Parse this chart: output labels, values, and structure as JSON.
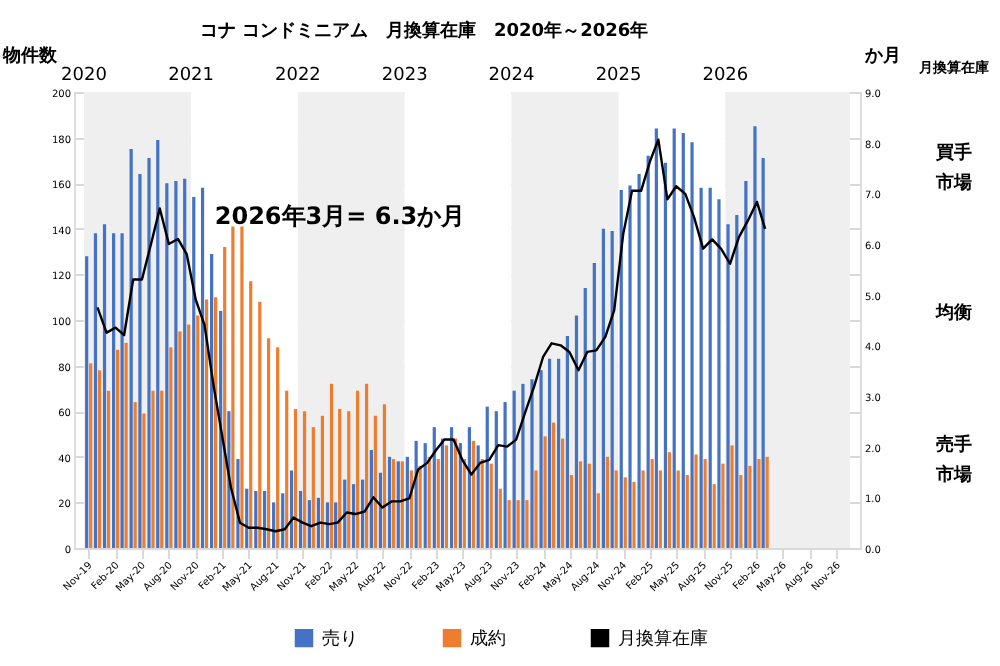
{
  "chart_data": {
    "type": "bar",
    "title": "コナ コンドミニアム　月換算在庫　2020年～2026年",
    "ylabel": "物件数",
    "y2label": "か月",
    "x": [
      "2019-11",
      "2019-12",
      "2020-01",
      "2020-02",
      "2020-03",
      "2020-04",
      "2020-05",
      "2020-06",
      "2020-07",
      "2020-08",
      "2020-09",
      "2020-10",
      "2020-11",
      "2020-12",
      "2021-01",
      "2021-02",
      "2021-03",
      "2021-04",
      "2021-05",
      "2021-06",
      "2021-07",
      "2021-08",
      "2021-09",
      "2021-10",
      "2021-11",
      "2021-12",
      "2022-01",
      "2022-02",
      "2022-03",
      "2022-04",
      "2022-05",
      "2022-06",
      "2022-07",
      "2022-08",
      "2022-09",
      "2022-10",
      "2022-11",
      "2022-12",
      "2023-01",
      "2023-02",
      "2023-03",
      "2023-04",
      "2023-05",
      "2023-06",
      "2023-07",
      "2023-08",
      "2023-09",
      "2023-10",
      "2023-11",
      "2023-12",
      "2024-01",
      "2024-02",
      "2024-03",
      "2024-04",
      "2024-05",
      "2024-06",
      "2024-07",
      "2024-08",
      "2024-09",
      "2024-10",
      "2024-11",
      "2024-12",
      "2025-01",
      "2025-02",
      "2025-03",
      "2025-04",
      "2025-05",
      "2025-06",
      "2025-07",
      "2025-08",
      "2025-09",
      "2025-10",
      "2025-11",
      "2025-12",
      "2026-01",
      "2026-02",
      "2026-03"
    ],
    "xlim": [
      "2019-10-16",
      "2026-12-16"
    ],
    "xticks": [
      {
        "value": "2019-11",
        "label": "Nov-19"
      },
      {
        "value": "2020-02",
        "label": "Feb-20"
      },
      {
        "value": "2020-05",
        "label": "May-20"
      },
      {
        "value": "2020-08",
        "label": "Aug-20"
      },
      {
        "value": "2020-11",
        "label": "Nov-20"
      },
      {
        "value": "2021-02",
        "label": "Feb-21"
      },
      {
        "value": "2021-05",
        "label": "May-21"
      },
      {
        "value": "2021-08",
        "label": "Aug-21"
      },
      {
        "value": "2021-11",
        "label": "Nov-21"
      },
      {
        "value": "2022-02",
        "label": "Feb-22"
      },
      {
        "value": "2022-05",
        "label": "May-22"
      },
      {
        "value": "2022-08",
        "label": "Aug-22"
      },
      {
        "value": "2022-11",
        "label": "Nov-22"
      },
      {
        "value": "2023-02",
        "label": "Feb-23"
      },
      {
        "value": "2023-05",
        "label": "May-23"
      },
      {
        "value": "2023-08",
        "label": "Aug-23"
      },
      {
        "value": "2023-11",
        "label": "Nov-23"
      },
      {
        "value": "2024-02",
        "label": "Feb-24"
      },
      {
        "value": "2024-05",
        "label": "May-24"
      },
      {
        "value": "2024-08",
        "label": "Aug-24"
      },
      {
        "value": "2024-11",
        "label": "Nov-24"
      },
      {
        "value": "2025-02",
        "label": "Feb-25"
      },
      {
        "value": "2025-05",
        "label": "May-25"
      },
      {
        "value": "2025-08",
        "label": "Aug-25"
      },
      {
        "value": "2025-11",
        "label": "Nov-25"
      },
      {
        "value": "2026-02",
        "label": "Feb-26"
      },
      {
        "value": "2026-05",
        "label": "May-26"
      },
      {
        "value": "2026-08",
        "label": "Aug-26"
      },
      {
        "value": "2026-11",
        "label": "Nov-26"
      }
    ],
    "ylim": [
      0,
      200
    ],
    "yticks": [
      0,
      20,
      40,
      60,
      80,
      100,
      120,
      140,
      160,
      180,
      200
    ],
    "y2lim": [
      0,
      9
    ],
    "y2ticks": [
      {
        "value": 0,
        "label": "0.0"
      },
      {
        "value": 1,
        "label": "1.0"
      },
      {
        "value": 2,
        "label": "2.0"
      },
      {
        "value": 3,
        "label": "3.0"
      },
      {
        "value": 4,
        "label": "4.0"
      },
      {
        "value": 5,
        "label": "5.0"
      },
      {
        "value": 6,
        "label": "6.0"
      },
      {
        "value": 7,
        "label": "7.0"
      },
      {
        "value": 8,
        "label": "8.0"
      },
      {
        "value": 9,
        "label": "9.0"
      }
    ],
    "grid": "y",
    "legend": "bottom",
    "marker": "none",
    "series": [
      {
        "name": "売り",
        "color": "#4472c4",
        "values": [
          128,
          138,
          142,
          138,
          138,
          175,
          164,
          171,
          179,
          160,
          161,
          162,
          154,
          158,
          129,
          104,
          60,
          39,
          26,
          25,
          25,
          20,
          24,
          34,
          25,
          21,
          22,
          20,
          20,
          30,
          28,
          30,
          43,
          33,
          40,
          38,
          40,
          47,
          46,
          53,
          48,
          53,
          46,
          53,
          45,
          62,
          60,
          64,
          69,
          72,
          74,
          78,
          83,
          83,
          93,
          102,
          114,
          125,
          140,
          139,
          157,
          159,
          164,
          172,
          184,
          169,
          184,
          182,
          178,
          158,
          158,
          153,
          142,
          146,
          161,
          185,
          171
        ]
      },
      {
        "name": "成約",
        "color": "#ed7d31",
        "values": [
          81,
          78,
          69,
          87,
          90,
          64,
          59,
          69,
          69,
          88,
          95,
          98,
          102,
          109,
          110,
          132,
          141,
          141,
          117,
          108,
          92,
          88,
          69,
          61,
          60,
          53,
          58,
          72,
          61,
          60,
          69,
          72,
          58,
          63,
          39,
          38,
          34,
          36,
          40,
          39,
          45,
          48,
          39,
          47,
          39,
          37,
          26,
          21,
          21,
          21,
          34,
          49,
          55,
          48,
          32,
          38,
          37,
          24,
          40,
          34,
          31,
          29,
          34,
          39,
          34,
          42,
          34,
          32,
          41,
          39,
          28,
          37,
          45,
          32,
          36,
          39,
          40
        ]
      },
      {
        "name": "月換算在庫",
        "type": "line",
        "axis": "y2",
        "color": "#000000",
        "line_style": "solid",
        "values": [
          null,
          4.75,
          4.25,
          4.35,
          4.2,
          5.3,
          5.3,
          6.0,
          6.7,
          6.0,
          6.1,
          5.8,
          4.9,
          4.4,
          3.2,
          2.15,
          1.2,
          0.5,
          0.4,
          0.4,
          0.37,
          0.33,
          0.37,
          0.6,
          0.5,
          0.43,
          0.5,
          0.47,
          0.5,
          0.7,
          0.67,
          0.72,
          1.0,
          0.8,
          0.92,
          0.92,
          0.98,
          1.55,
          1.68,
          1.94,
          2.14,
          2.14,
          1.74,
          1.45,
          1.68,
          1.74,
          2.03,
          2.0,
          2.14,
          2.66,
          3.18,
          3.77,
          4.04,
          4.0,
          3.87,
          3.51,
          3.87,
          3.9,
          4.17,
          4.69,
          6.2,
          7.05,
          7.05,
          7.64,
          8.06,
          6.88,
          7.14,
          6.99,
          6.53,
          5.91,
          6.09,
          5.91,
          5.61,
          6.13,
          6.46,
          6.83,
          6.3
        ]
      }
    ],
    "bands": [
      {
        "axis": "x",
        "from": "2019-10-16",
        "to": "2020-10-16",
        "label": "2020",
        "color": "#efefef"
      },
      {
        "axis": "x",
        "from": "2020-10-16",
        "to": "2021-10-16",
        "label": "2021",
        "color": "#ffffff"
      },
      {
        "axis": "x",
        "from": "2021-10-16",
        "to": "2022-10-16",
        "label": "2022",
        "color": "#efefef"
      },
      {
        "axis": "x",
        "from": "2022-10-16",
        "to": "2023-10-16",
        "label": "2023",
        "color": "#ffffff"
      },
      {
        "axis": "x",
        "from": "2023-10-16",
        "to": "2024-10-16",
        "label": "2024",
        "color": "#efefef"
      },
      {
        "axis": "x",
        "from": "2024-10-16",
        "to": "2025-10-16",
        "label": "2025",
        "color": "#ffffff"
      },
      {
        "axis": "x",
        "from": "2025-10-16",
        "to": "2026-12-16",
        "label": "2026",
        "color": "#efefef"
      }
    ],
    "annotations": [
      "2026年3月= 6.3か月",
      "月換算在庫",
      "買手",
      "市場",
      "均衡",
      "売手",
      "市場"
    ]
  }
}
